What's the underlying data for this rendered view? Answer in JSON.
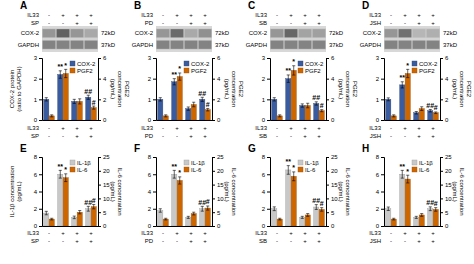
{
  "chart_data": [
    {
      "type": "heatmap",
      "title": "A",
      "conditions": [
        {
          "name": "IL33",
          "labels": [
            "-",
            "+",
            "+",
            "+"
          ]
        },
        {
          "name": "SP",
          "labels": [
            "-",
            "-",
            "+",
            "+"
          ]
        }
      ],
      "rows": [
        "COX-2",
        "GAPDH"
      ],
      "annotations": [
        "72kD",
        "37kD"
      ],
      "cells": [
        [
          0.55,
          0.82,
          0.55,
          0.45
        ],
        [
          0.65,
          0.65,
          0.65,
          0.65
        ]
      ]
    },
    {
      "type": "bar",
      "conditions": [
        {
          "name": "IL33",
          "labels": [
            "-",
            "+",
            "+",
            "+"
          ]
        },
        {
          "name": "SP",
          "labels": [
            "-",
            "-",
            "+",
            "+"
          ]
        }
      ],
      "y_label": "COX-2 protein\n(ratio to GAPDH)",
      "y2_label": "PGE2\nconcentration\n(pg/mL)",
      "series": [
        {
          "name": "COX-2",
          "color": "#3a5b9e",
          "values": [
            1.0,
            2.2,
            0.9,
            1.1
          ],
          "errors": [
            0.08,
            0.18,
            0.1,
            0.1
          ],
          "annotations": [
            null,
            "**",
            null,
            "##"
          ]
        },
        {
          "name": "PGF2",
          "color": "#cc6600",
          "axis": "y2",
          "values": [
            0.4,
            4.5,
            1.8,
            1.2
          ],
          "errors": [
            0.1,
            0.4,
            0.25,
            0.15
          ],
          "annotations": [
            null,
            "*",
            null,
            "#"
          ]
        }
      ],
      "ylim": [
        0,
        3
      ],
      "yticks": [
        0,
        1,
        2,
        3
      ],
      "y2lim": [
        0,
        6
      ],
      "y2ticks": [
        0,
        2,
        4,
        6
      ],
      "legend": "upper right"
    },
    {
      "type": "heatmap",
      "title": "B",
      "conditions": [
        {
          "name": "IL33",
          "labels": [
            "-",
            "+",
            "+",
            "+"
          ]
        },
        {
          "name": "PD",
          "labels": [
            "-",
            "-",
            "+",
            "+"
          ]
        }
      ],
      "rows": [
        "COX-2",
        "GAPDH"
      ],
      "annotations": [
        "72kD",
        "37kD"
      ],
      "cells": [
        [
          0.55,
          0.78,
          0.45,
          0.58
        ],
        [
          0.65,
          0.65,
          0.65,
          0.65
        ]
      ]
    },
    {
      "type": "bar",
      "conditions": [
        {
          "name": "IL33",
          "labels": [
            "-",
            "+",
            "+",
            "+"
          ]
        },
        {
          "name": "PD",
          "labels": [
            "-",
            "-",
            "+",
            "+"
          ]
        }
      ],
      "y2_label": "PGE2\nconcentration\n(pg/mL)",
      "series": [
        {
          "name": "COX-2",
          "color": "#3a5b9e",
          "values": [
            1.0,
            1.85,
            0.55,
            1.0
          ],
          "errors": [
            0.08,
            0.15,
            0.08,
            0.1
          ],
          "annotations": [
            null,
            "**",
            null,
            "##"
          ]
        },
        {
          "name": "PGF2",
          "color": "#cc6600",
          "axis": "y2",
          "values": [
            0.4,
            4.2,
            1.5,
            1.0
          ],
          "errors": [
            0.1,
            0.35,
            0.22,
            0.12
          ],
          "annotations": [
            null,
            "*",
            null,
            "#"
          ]
        }
      ],
      "ylim": [
        0,
        3
      ],
      "yticks": [
        0,
        1,
        2,
        3
      ],
      "y2lim": [
        0,
        6
      ],
      "y2ticks": [
        0,
        2,
        4,
        6
      ],
      "legend": "upper right"
    },
    {
      "type": "heatmap",
      "title": "C",
      "conditions": [
        {
          "name": "IL33",
          "labels": [
            "-",
            "+",
            "+",
            "+"
          ]
        },
        {
          "name": "SB",
          "labels": [
            "-",
            "-",
            "+",
            "+"
          ]
        }
      ],
      "rows": [
        "COX-2",
        "GAPDH"
      ],
      "annotations": [
        "72kD",
        "37kD"
      ],
      "cells": [
        [
          0.55,
          0.8,
          0.48,
          0.5
        ],
        [
          0.65,
          0.65,
          0.65,
          0.65
        ]
      ]
    },
    {
      "type": "bar",
      "conditions": [
        {
          "name": "IL33",
          "labels": [
            "-",
            "+",
            "+",
            "+"
          ]
        },
        {
          "name": "SB",
          "labels": [
            "-",
            "-",
            "+",
            "+"
          ]
        }
      ],
      "y2_label": "PGE2\nconcentration\n(pg/mL)",
      "series": [
        {
          "name": "COX-2",
          "color": "#3a5b9e",
          "values": [
            1.0,
            2.0,
            0.7,
            0.8
          ],
          "errors": [
            0.08,
            0.18,
            0.08,
            0.08
          ],
          "annotations": [
            null,
            "**",
            null,
            "##"
          ]
        },
        {
          "name": "PGF2",
          "color": "#cc6600",
          "axis": "y2",
          "values": [
            0.4,
            4.8,
            1.4,
            0.9
          ],
          "errors": [
            0.1,
            0.45,
            0.22,
            0.1
          ],
          "annotations": [
            null,
            "*",
            null,
            "#"
          ]
        }
      ],
      "ylim": [
        0,
        3
      ],
      "yticks": [
        0,
        1,
        2,
        3
      ],
      "y2lim": [
        0,
        6
      ],
      "y2ticks": [
        0,
        2,
        4,
        6
      ],
      "legend": "upper right"
    },
    {
      "type": "heatmap",
      "title": "D",
      "conditions": [
        {
          "name": "IL33",
          "labels": [
            "-",
            "+",
            "+",
            "+"
          ]
        },
        {
          "name": "JSH",
          "labels": [
            "-",
            "-",
            "+",
            "+"
          ]
        }
      ],
      "rows": [
        "COX-2",
        "GAPDH"
      ],
      "annotations": [
        "72kD",
        "37kD"
      ],
      "cells": [
        [
          0.55,
          0.75,
          0.38,
          0.42
        ],
        [
          0.65,
          0.65,
          0.65,
          0.65
        ]
      ]
    },
    {
      "type": "bar",
      "conditions": [
        {
          "name": "IL33",
          "labels": [
            "-",
            "+",
            "+",
            "+"
          ]
        },
        {
          "name": "JSH",
          "labels": [
            "-",
            "-",
            "+",
            "+"
          ]
        }
      ],
      "y2_label": "PGE2\nconcentration\n(pg/mL)",
      "series": [
        {
          "name": "COX-2",
          "color": "#3a5b9e",
          "values": [
            1.0,
            1.7,
            0.35,
            0.45
          ],
          "errors": [
            0.07,
            0.15,
            0.06,
            0.06
          ],
          "annotations": [
            null,
            "**",
            null,
            "##"
          ]
        },
        {
          "name": "PGF2",
          "color": "#cc6600",
          "axis": "y2",
          "values": [
            0.4,
            4.5,
            1.1,
            0.7
          ],
          "errors": [
            0.1,
            0.4,
            0.18,
            0.08
          ],
          "annotations": [
            null,
            "*",
            null,
            "#"
          ]
        }
      ],
      "ylim": [
        0,
        3
      ],
      "yticks": [
        0,
        1,
        2,
        3
      ],
      "y2lim": [
        0,
        6
      ],
      "y2ticks": [
        0,
        2,
        4,
        6
      ],
      "legend": "upper right"
    },
    {
      "type": "bar",
      "title": "E",
      "conditions": [
        {
          "name": "IL33",
          "labels": [
            "-",
            "+",
            "+",
            "+"
          ]
        },
        {
          "name": "SP",
          "labels": [
            "-",
            "-",
            "+",
            "+"
          ]
        }
      ],
      "y_label": "IL-1β concentration\n(pg/mL)",
      "y2_label": "IL-6 concentration\n(pg/mL)",
      "series": [
        {
          "name": "IL-1β",
          "color": "#c8c8c8",
          "values": [
            1.5,
            6.0,
            1.0,
            2.0
          ],
          "errors": [
            0.2,
            0.45,
            0.15,
            0.28
          ],
          "annotations": [
            null,
            "**",
            null,
            "##"
          ]
        },
        {
          "name": "IL-6",
          "color": "#cc6600",
          "axis": "y2",
          "values": [
            2.5,
            17.5,
            5.0,
            7.0
          ],
          "errors": [
            0.3,
            1.4,
            0.6,
            0.8
          ],
          "annotations": [
            null,
            "*",
            null,
            "#"
          ]
        }
      ],
      "ylim": [
        0,
        8
      ],
      "yticks": [
        0,
        2,
        4,
        6,
        8
      ],
      "y2lim": [
        0,
        25
      ],
      "y2ticks": [
        0,
        5,
        10,
        15,
        20,
        25
      ],
      "legend": "upper right"
    },
    {
      "type": "bar",
      "title": "F",
      "conditions": [
        {
          "name": "IL33",
          "labels": [
            "-",
            "+",
            "+",
            "+"
          ]
        },
        {
          "name": "PD",
          "labels": [
            "-",
            "-",
            "+",
            "+"
          ]
        }
      ],
      "y2_label": "IL-6 concentration\n(pg/mL)",
      "series": [
        {
          "name": "IL-1β",
          "color": "#c8c8c8",
          "values": [
            1.8,
            6.0,
            1.0,
            2.0
          ],
          "errors": [
            0.2,
            0.45,
            0.12,
            0.28
          ],
          "annotations": [
            null,
            "**",
            null,
            "##"
          ]
        },
        {
          "name": "IL-6",
          "color": "#cc6600",
          "axis": "y2",
          "values": [
            2.5,
            16.5,
            4.5,
            6.5
          ],
          "errors": [
            0.3,
            1.3,
            0.5,
            0.75
          ],
          "annotations": [
            null,
            "*",
            null,
            "#"
          ]
        }
      ],
      "ylim": [
        0,
        8
      ],
      "yticks": [
        0,
        2,
        4,
        6,
        8
      ],
      "y2lim": [
        0,
        25
      ],
      "y2ticks": [
        0,
        5,
        10,
        15,
        20,
        25
      ],
      "legend": "upper right"
    },
    {
      "type": "bar",
      "title": "G",
      "conditions": [
        {
          "name": "IL33",
          "labels": [
            "-",
            "+",
            "+",
            "+"
          ]
        },
        {
          "name": "SB",
          "labels": [
            "-",
            "-",
            "+",
            "+"
          ]
        }
      ],
      "y2_label": "IL-6 concentration\n(pg/mL)",
      "series": [
        {
          "name": "IL-1β",
          "color": "#c8c8c8",
          "values": [
            2.0,
            6.5,
            1.0,
            2.2
          ],
          "errors": [
            0.22,
            0.5,
            0.12,
            0.28
          ],
          "annotations": [
            null,
            "**",
            null,
            "##"
          ]
        },
        {
          "name": "IL-6",
          "color": "#cc6600",
          "axis": "y2",
          "values": [
            2.5,
            18.0,
            4.0,
            6.0
          ],
          "errors": [
            0.3,
            1.6,
            0.5,
            0.65
          ],
          "annotations": [
            null,
            "*",
            null,
            "#"
          ]
        }
      ],
      "ylim": [
        0,
        8
      ],
      "yticks": [
        0,
        2,
        4,
        6,
        8
      ],
      "y2lim": [
        0,
        25
      ],
      "y2ticks": [
        0,
        5,
        10,
        15,
        20,
        25
      ],
      "legend": "upper right"
    },
    {
      "type": "bar",
      "title": "H",
      "conditions": [
        {
          "name": "IL33",
          "labels": [
            "-",
            "+",
            "+",
            "+"
          ]
        },
        {
          "name": "JSH",
          "labels": [
            "-",
            "-",
            "+",
            "+"
          ]
        }
      ],
      "y2_label": "IL-6 concentration\n(pg/mL)",
      "series": [
        {
          "name": "IL-1β",
          "color": "#c8c8c8",
          "values": [
            2.0,
            6.0,
            1.0,
            2.0
          ],
          "errors": [
            0.2,
            0.45,
            0.12,
            0.22
          ],
          "annotations": [
            null,
            "**",
            null,
            "##"
          ]
        },
        {
          "name": "IL-6",
          "color": "#cc6600",
          "axis": "y2",
          "values": [
            2.5,
            17.0,
            4.0,
            6.0
          ],
          "errors": [
            0.3,
            1.4,
            0.5,
            0.65
          ],
          "annotations": [
            null,
            "*",
            null,
            "#"
          ]
        }
      ],
      "ylim": [
        0,
        8
      ],
      "yticks": [
        0,
        2,
        4,
        6,
        8
      ],
      "y2lim": [
        0,
        25
      ],
      "y2ticks": [
        0,
        5,
        10,
        15,
        20,
        25
      ],
      "legend": "upper right"
    }
  ]
}
